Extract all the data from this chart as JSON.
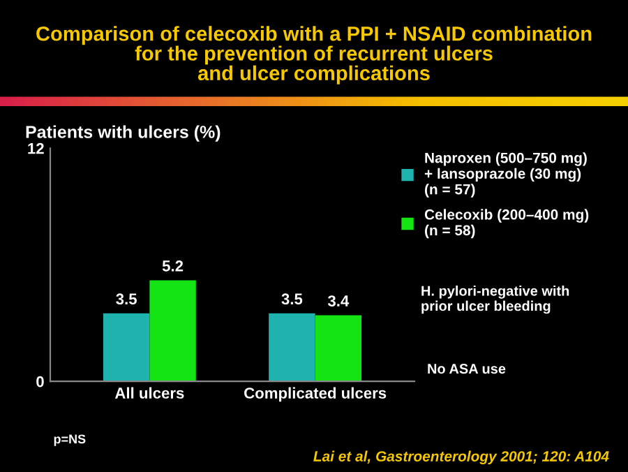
{
  "chart_data": {
    "type": "bar",
    "title": "Comparison of celecoxib with a PPI + NSAID combination\nfor the prevention of recurrent ulcers\nand ulcer complications",
    "ylabel": "Patients with ulcers (%)",
    "categories": [
      "All ulcers",
      "Complicated ulcers"
    ],
    "series": [
      {
        "name": "Naproxen (500–750 mg)\n+ lansoprazole (30 mg)\n(n = 57)",
        "color": "#1fb3b0",
        "values": [
          3.5,
          3.5
        ]
      },
      {
        "name": "Celecoxib (200–400 mg)\n(n = 58)",
        "color": "#14e414",
        "values": [
          5.2,
          3.4
        ]
      }
    ],
    "ylim": [
      0,
      12
    ],
    "yticks": [
      0,
      12
    ],
    "data_labels": true,
    "legend": "right",
    "grid": false,
    "annotations": [
      "H. pylori-negative with\nprior ulcer bleeding",
      "No ASA use",
      "p=NS",
      "Lai et al, Gastroenterology 2001; 120: A104"
    ]
  }
}
